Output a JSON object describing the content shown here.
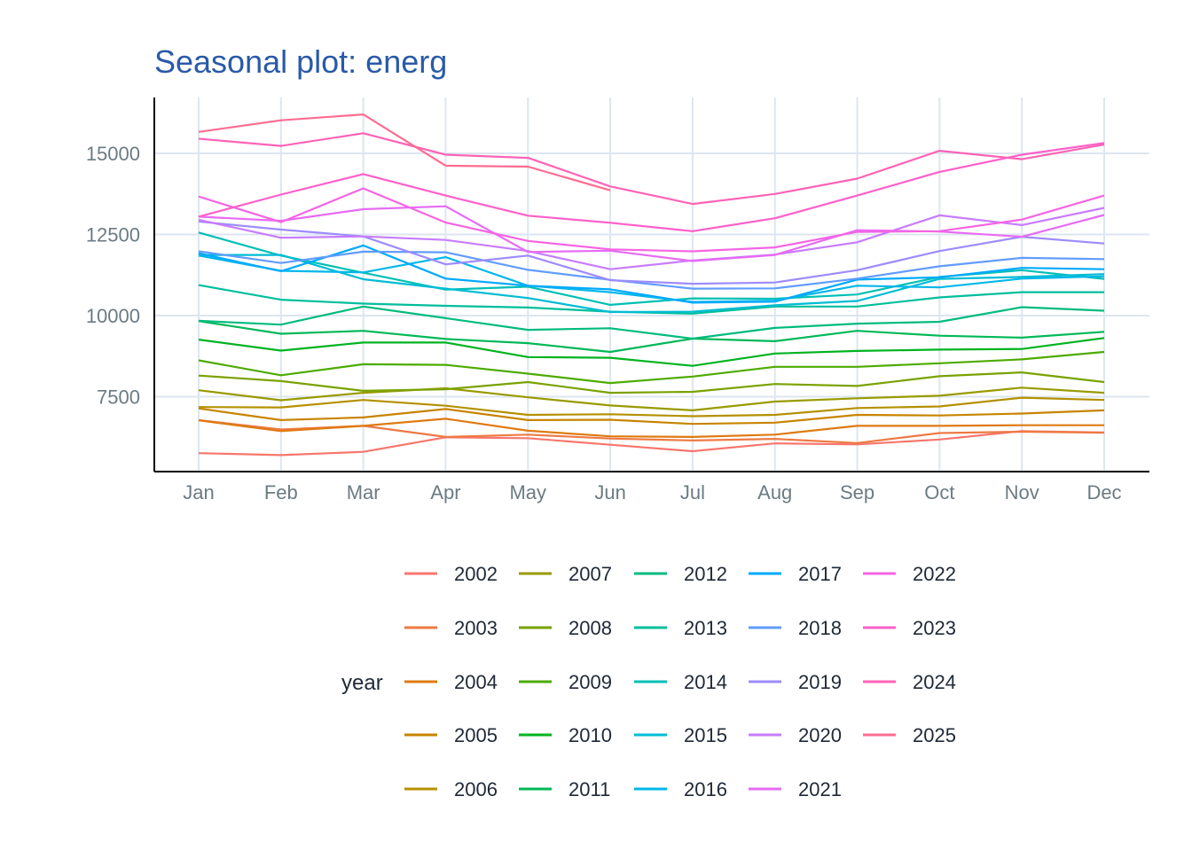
{
  "chart_data": {
    "type": "line",
    "title": "Seasonal plot: energ",
    "xlabel": "",
    "ylabel": "",
    "categories": [
      "Jan",
      "Feb",
      "Mar",
      "Apr",
      "May",
      "Jun",
      "Jul",
      "Aug",
      "Sep",
      "Oct",
      "Nov",
      "Dec"
    ],
    "yticks": [
      7500,
      10000,
      12500,
      15000
    ],
    "ytick_labels": [
      "7500",
      "10000",
      "12500",
      "15000"
    ],
    "ylim": [
      5250,
      16700
    ],
    "grid": true,
    "legend_title": "year",
    "legend_position": "bottom",
    "series": [
      {
        "name": "2002",
        "color": "#F8766D",
        "values": [
          5760,
          5700,
          5800,
          6250,
          6220,
          6020,
          5820,
          6060,
          6030,
          6180,
          6440,
          6400
        ]
      },
      {
        "name": "2003",
        "color": "#EE7A43",
        "values": [
          6780,
          6490,
          6600,
          6260,
          6330,
          6210,
          6150,
          6200,
          6070,
          6380,
          6420,
          6390
        ]
      },
      {
        "name": "2004",
        "color": "#DF7A12",
        "values": [
          6770,
          6440,
          6600,
          6820,
          6450,
          6280,
          6260,
          6330,
          6600,
          6600,
          6620,
          6620
        ]
      },
      {
        "name": "2005",
        "color": "#C88400",
        "values": [
          7140,
          6780,
          6860,
          7120,
          6780,
          6790,
          6660,
          6700,
          6940,
          6920,
          6980,
          7080
        ]
      },
      {
        "name": "2006",
        "color": "#B49000",
        "values": [
          7180,
          7170,
          7400,
          7220,
          6940,
          6960,
          6900,
          6940,
          7150,
          7200,
          7470,
          7400
        ]
      },
      {
        "name": "2007",
        "color": "#999A00",
        "values": [
          7700,
          7390,
          7620,
          7760,
          7480,
          7230,
          7080,
          7350,
          7450,
          7530,
          7780,
          7620
        ]
      },
      {
        "name": "2008",
        "color": "#7AA200",
        "values": [
          8150,
          7980,
          7680,
          7730,
          7950,
          7620,
          7650,
          7890,
          7830,
          8130,
          8250,
          7950
        ]
      },
      {
        "name": "2009",
        "color": "#4DAB00",
        "values": [
          8620,
          8160,
          8500,
          8480,
          8210,
          7920,
          8120,
          8420,
          8420,
          8530,
          8650,
          8880
        ]
      },
      {
        "name": "2010",
        "color": "#00B320",
        "values": [
          9260,
          8920,
          9170,
          9170,
          8720,
          8700,
          8450,
          8830,
          8910,
          8950,
          8970,
          9310
        ]
      },
      {
        "name": "2011",
        "color": "#00B857",
        "values": [
          9830,
          9440,
          9530,
          9280,
          9150,
          8880,
          9290,
          9210,
          9530,
          9380,
          9320,
          9500
        ]
      },
      {
        "name": "2012",
        "color": "#00BB7E",
        "values": [
          9840,
          9720,
          10280,
          9920,
          9560,
          9610,
          9290,
          9620,
          9750,
          9810,
          10260,
          10150
        ]
      },
      {
        "name": "2013",
        "color": "#00BE9C",
        "values": [
          10940,
          10490,
          10370,
          10300,
          10250,
          10120,
          10060,
          10280,
          10280,
          10560,
          10720,
          10720
        ]
      },
      {
        "name": "2014",
        "color": "#00BFB5",
        "values": [
          12560,
          11850,
          11320,
          10800,
          10890,
          10330,
          10530,
          10520,
          10650,
          11190,
          11400,
          11130
        ]
      },
      {
        "name": "2015",
        "color": "#00BCD4",
        "values": [
          11870,
          11870,
          11120,
          10830,
          10540,
          10110,
          10120,
          10320,
          10450,
          11130,
          11190,
          11280
        ]
      },
      {
        "name": "2016",
        "color": "#00B7E9",
        "values": [
          11850,
          11380,
          11330,
          11800,
          10920,
          10720,
          10420,
          10460,
          10920,
          10870,
          11140,
          11210
        ]
      },
      {
        "name": "2017",
        "color": "#00A9FF",
        "values": [
          11920,
          11370,
          12160,
          11140,
          10920,
          10810,
          10400,
          10430,
          11110,
          11180,
          11470,
          11430
        ]
      },
      {
        "name": "2018",
        "color": "#619CFF",
        "values": [
          11980,
          11620,
          11970,
          11950,
          11410,
          11100,
          10830,
          10840,
          11140,
          11520,
          11780,
          11740
        ]
      },
      {
        "name": "2019",
        "color": "#9E8BFF",
        "values": [
          12900,
          12650,
          12440,
          11580,
          11850,
          11090,
          10980,
          11020,
          11400,
          11990,
          12430,
          12220
        ]
      },
      {
        "name": "2020",
        "color": "#C77CFF",
        "values": [
          12950,
          12400,
          12440,
          12330,
          11990,
          11430,
          11700,
          11880,
          12260,
          13090,
          12790,
          13320
        ]
      },
      {
        "name": "2021",
        "color": "#E76BF3",
        "values": [
          13050,
          12920,
          13280,
          13370,
          11960,
          12000,
          11680,
          11870,
          12630,
          12590,
          12430,
          13100
        ]
      },
      {
        "name": "2022",
        "color": "#F564E3",
        "values": [
          13670,
          12880,
          13920,
          12870,
          12300,
          12040,
          11980,
          12100,
          12580,
          12600,
          12960,
          13700
        ]
      },
      {
        "name": "2023",
        "color": "#FF5FC9",
        "values": [
          13050,
          13730,
          14360,
          13700,
          13080,
          12860,
          12600,
          13000,
          13700,
          14430,
          14960,
          15320
        ]
      },
      {
        "name": "2024",
        "color": "#FF63B6",
        "values": [
          15450,
          15230,
          15620,
          14960,
          14860,
          13980,
          13440,
          13750,
          14220,
          15080,
          14820,
          15270
        ]
      },
      {
        "name": "2025",
        "color": "#FF6C91",
        "values": [
          15660,
          16020,
          16200,
          14620,
          14590,
          13860,
          null,
          null,
          null,
          null,
          null,
          null
        ]
      }
    ]
  }
}
